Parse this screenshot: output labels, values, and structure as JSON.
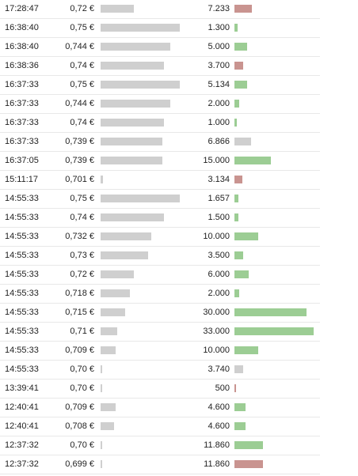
{
  "colors": {
    "price_bar": "#cfcfcf",
    "qty_up": "#9ccd94",
    "qty_down": "#c99490",
    "qty_neutral": "#cfcfcf"
  },
  "trades": [
    {
      "time": "17:28:47",
      "price": "0,72 €",
      "price_level": 0.42,
      "volume": "7.233",
      "volume_level": 0.22,
      "direction": "down"
    },
    {
      "time": "16:38:40",
      "price": "0,75 €",
      "price_level": 1.0,
      "volume": "1.300",
      "volume_level": 0.04,
      "direction": "up"
    },
    {
      "time": "16:38:40",
      "price": "0,744 €",
      "price_level": 0.88,
      "volume": "5.000",
      "volume_level": 0.16,
      "direction": "up"
    },
    {
      "time": "16:38:36",
      "price": "0,74 €",
      "price_level": 0.8,
      "volume": "3.700",
      "volume_level": 0.11,
      "direction": "down"
    },
    {
      "time": "16:37:33",
      "price": "0,75 €",
      "price_level": 1.0,
      "volume": "5.134",
      "volume_level": 0.16,
      "direction": "up"
    },
    {
      "time": "16:37:33",
      "price": "0,744 €",
      "price_level": 0.88,
      "volume": "2.000",
      "volume_level": 0.06,
      "direction": "up"
    },
    {
      "time": "16:37:33",
      "price": "0,74 €",
      "price_level": 0.8,
      "volume": "1.000",
      "volume_level": 0.03,
      "direction": "up"
    },
    {
      "time": "16:37:33",
      "price": "0,739 €",
      "price_level": 0.78,
      "volume": "6.866",
      "volume_level": 0.21,
      "direction": "neutral"
    },
    {
      "time": "16:37:05",
      "price": "0,739 €",
      "price_level": 0.78,
      "volume": "15.000",
      "volume_level": 0.46,
      "direction": "up"
    },
    {
      "time": "15:11:17",
      "price": "0,701 €",
      "price_level": 0.03,
      "volume": "3.134",
      "volume_level": 0.1,
      "direction": "down"
    },
    {
      "time": "14:55:33",
      "price": "0,75 €",
      "price_level": 1.0,
      "volume": "1.657",
      "volume_level": 0.05,
      "direction": "up"
    },
    {
      "time": "14:55:33",
      "price": "0,74 €",
      "price_level": 0.8,
      "volume": "1.500",
      "volume_level": 0.05,
      "direction": "up"
    },
    {
      "time": "14:55:33",
      "price": "0,732 €",
      "price_level": 0.64,
      "volume": "10.000",
      "volume_level": 0.3,
      "direction": "up"
    },
    {
      "time": "14:55:33",
      "price": "0,73 €",
      "price_level": 0.6,
      "volume": "3.500",
      "volume_level": 0.11,
      "direction": "up"
    },
    {
      "time": "14:55:33",
      "price": "0,72 €",
      "price_level": 0.42,
      "volume": "6.000",
      "volume_level": 0.18,
      "direction": "up"
    },
    {
      "time": "14:55:33",
      "price": "0,718 €",
      "price_level": 0.37,
      "volume": "2.000",
      "volume_level": 0.06,
      "direction": "up"
    },
    {
      "time": "14:55:33",
      "price": "0,715 €",
      "price_level": 0.31,
      "volume": "30.000",
      "volume_level": 0.91,
      "direction": "up"
    },
    {
      "time": "14:55:33",
      "price": "0,71 €",
      "price_level": 0.21,
      "volume": "33.000",
      "volume_level": 1.0,
      "direction": "up"
    },
    {
      "time": "14:55:33",
      "price": "0,709 €",
      "price_level": 0.19,
      "volume": "10.000",
      "volume_level": 0.3,
      "direction": "up"
    },
    {
      "time": "14:55:33",
      "price": "0,70 €",
      "price_level": 0.02,
      "volume": "3.740",
      "volume_level": 0.11,
      "direction": "neutral"
    },
    {
      "time": "13:39:41",
      "price": "0,70 €",
      "price_level": 0.02,
      "volume": "500",
      "volume_level": 0.02,
      "direction": "down"
    },
    {
      "time": "12:40:41",
      "price": "0,709 €",
      "price_level": 0.19,
      "volume": "4.600",
      "volume_level": 0.14,
      "direction": "up"
    },
    {
      "time": "12:40:41",
      "price": "0,708 €",
      "price_level": 0.17,
      "volume": "4.600",
      "volume_level": 0.14,
      "direction": "up"
    },
    {
      "time": "12:37:32",
      "price": "0,70 €",
      "price_level": 0.02,
      "volume": "11.860",
      "volume_level": 0.36,
      "direction": "up"
    },
    {
      "time": "12:37:32",
      "price": "0,699 €",
      "price_level": 0.02,
      "volume": "11.860",
      "volume_level": 0.36,
      "direction": "down"
    }
  ]
}
